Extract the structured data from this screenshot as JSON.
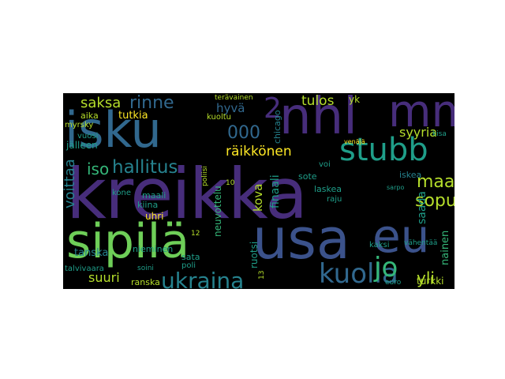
{
  "cloud": {
    "words": {
      "kreikka": "kreikka",
      "isku": "isku",
      "sipila": "sipilä",
      "usa": "usa",
      "eu": "eu",
      "nhl": "nhl",
      "mm": "mm",
      "stubb": "stubb",
      "two": "2",
      "ukraina": "ukraina",
      "kuolla": "kuolla",
      "jo": "jo",
      "hallitus": "hallitus",
      "iso": "iso",
      "maa": "maa",
      "sopu": "sopu",
      "saksa": "saksa",
      "rinne": "rinne",
      "raikkonen": "räikkönen",
      "tulos": "tulos",
      "syyria": "syyria",
      "suuri": "suuri",
      "yli": "yli",
      "hyva": "hyvä",
      "aika": "aika",
      "tutkia": "tutkia",
      "zeros": "000",
      "voittaa": "voittaa",
      "kova": "kova",
      "saada": "saada",
      "tanska": "tanska",
      "turkki": "turkki",
      "ranska": "ranska",
      "nainen": "nainen",
      "uhri": "uhri",
      "kiina": "kiina",
      "nieminen": "nieminen",
      "maali": "maali",
      "sata": "sata",
      "poli": "poli",
      "myrsky": "myrsky",
      "jalleen": "jälleen",
      "vuosi": "vuosi",
      "sote": "sote",
      "laskea": "laskea",
      "iskea": "iskea",
      "kaksi": "kaksi",
      "vahentaa": "vähentää",
      "chicago": "chicago",
      "yk": "yk",
      "kuoltu": "kuoltu",
      "talvivaara": "talvivaara",
      "finaali": "finaali",
      "neuvottelu": "neuvottelu",
      "ruotsi": "ruotsi",
      "raju": "raju",
      "voi": "voi",
      "kone": "kone",
      "teravainen": "terävainen",
      "soini": "soini",
      "poliisi": "poliisi",
      "sarpo": "sarpo",
      "euro": "euro",
      "kisa": "kisa",
      "venaja": "venäjä",
      "twelve": "12",
      "thirteen": "13",
      "ten": "10"
    }
  },
  "colors": {
    "background": "#000000",
    "purple": "#472d7b",
    "indigo": "#3b528b",
    "blue": "#31688e",
    "teal": "#26828e",
    "green_teal": "#1f9e89",
    "green": "#35b779",
    "light_green": "#6ece58",
    "lime": "#b5de2b",
    "yellow": "#fde725"
  }
}
